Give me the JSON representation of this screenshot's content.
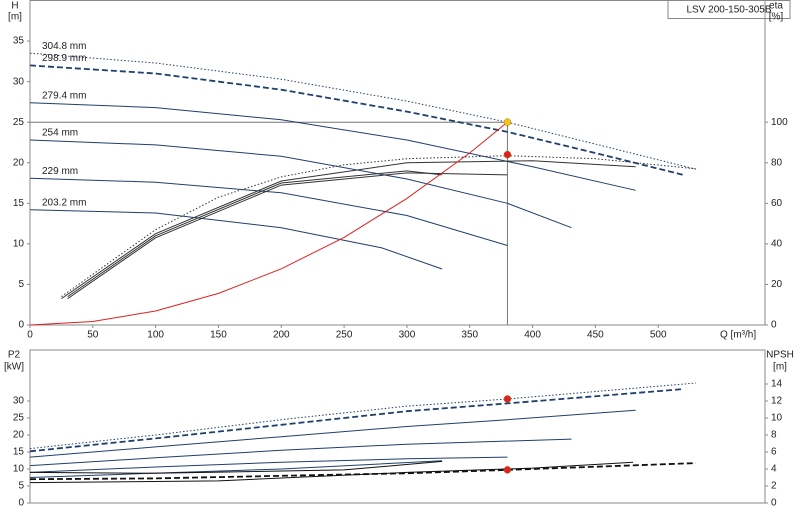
{
  "chart_data": [
    {
      "type": "line",
      "title": "LSV 200-150-305B",
      "x_label": "Q [m³/h]",
      "y_label": "H",
      "y_unit": "[m]",
      "y2_label": "eta",
      "y2_unit": "[%]",
      "xlim": [
        0,
        585
      ],
      "xticks": [
        0,
        50,
        100,
        150,
        200,
        250,
        300,
        350,
        400,
        450,
        500
      ],
      "ylim": [
        0,
        40
      ],
      "yticks": [
        0,
        5,
        10,
        15,
        20,
        25,
        30,
        35
      ],
      "y2lim": [
        0,
        160
      ],
      "y2ticks": [
        0,
        20,
        40,
        60,
        80,
        100
      ],
      "grid": false,
      "crosshair": true,
      "series": [
        {
          "name": "304.8 mm",
          "color": "#1f3f6e",
          "style": "dotted",
          "x": [
            0,
            100,
            200,
            300,
            380,
            450,
            530
          ],
          "values": [
            33.5,
            32.3,
            30.3,
            27.6,
            25,
            22.3,
            19.2
          ]
        },
        {
          "name": "298.9 mm",
          "color": "#1f3f6e",
          "style": "dashed",
          "x": [
            0,
            100,
            200,
            300,
            380,
            450,
            520
          ],
          "values": [
            32,
            31,
            29,
            26.3,
            23.8,
            21.2,
            18.5
          ]
        },
        {
          "name": "279.4 mm",
          "color": "#1f3f6e",
          "style": "solid",
          "x": [
            0,
            100,
            200,
            300,
            400,
            482
          ],
          "values": [
            27.4,
            26.8,
            25.3,
            22.8,
            19.5,
            16.6
          ]
        },
        {
          "name": "254 mm",
          "color": "#1f3f6e",
          "style": "solid",
          "x": [
            0,
            100,
            200,
            300,
            380,
            431
          ],
          "values": [
            22.8,
            22.2,
            20.8,
            18,
            15,
            12
          ]
        },
        {
          "name": "229 mm",
          "color": "#1f3f6e",
          "style": "solid",
          "x": [
            0,
            100,
            200,
            300,
            380
          ],
          "values": [
            18.1,
            17.6,
            16.3,
            13.5,
            9.8
          ]
        },
        {
          "name": "203.2 mm",
          "color": "#1f3f6e",
          "style": "solid",
          "x": [
            0,
            100,
            200,
            280,
            328
          ],
          "values": [
            14.2,
            13.8,
            12,
            9.5,
            6.9
          ]
        },
        {
          "color": "#333333",
          "style": "dotted",
          "axis": "y2",
          "x": [
            25,
            100,
            150,
            200,
            250,
            300,
            380,
            450,
            530
          ],
          "values": [
            14,
            47,
            63,
            73,
            79,
            82,
            83.5,
            82,
            77
          ]
        },
        {
          "color": "#333333",
          "style": "solid",
          "axis": "y2",
          "x": [
            25,
            100,
            200,
            300,
            400,
            482
          ],
          "values": [
            13,
            45,
            71,
            80,
            81,
            78
          ]
        },
        {
          "color": "#333333",
          "style": "solid",
          "axis": "y2",
          "x": [
            30,
            100,
            200,
            300,
            328
          ],
          "values": [
            14,
            44,
            70,
            76,
            74
          ]
        },
        {
          "color": "#333333",
          "style": "solid",
          "axis": "y2",
          "x": [
            30,
            100,
            200,
            300,
            380
          ],
          "values": [
            13,
            43,
            69,
            75,
            74
          ]
        },
        {
          "color": "#e02020",
          "style": "solid",
          "x": [
            0,
            50,
            100,
            150,
            200,
            250,
            300,
            350,
            380
          ],
          "values": [
            0,
            0.43,
            1.73,
            3.9,
            6.93,
            10.8,
            15.6,
            21.2,
            25
          ]
        }
      ],
      "markers": [
        {
          "x": 380,
          "y": 25,
          "color": "#f5c518"
        },
        {
          "x": 380,
          "y": 84,
          "color": "#e02020",
          "axis": "y2"
        }
      ]
    },
    {
      "type": "line",
      "y_label": "P2",
      "y_unit": "[kW]",
      "y2_label": "NPSH",
      "y2_unit": "[m]",
      "xlim": [
        0,
        585
      ],
      "ylim": [
        0,
        45
      ],
      "yticks": [
        0,
        5,
        10,
        15,
        20,
        25,
        30
      ],
      "y2lim": [
        0,
        18
      ],
      "y2ticks": [
        0,
        2,
        4,
        6,
        8,
        10,
        12,
        14
      ],
      "grid": false,
      "series": [
        {
          "color": "#1f3f6e",
          "style": "dotted",
          "x": [
            0,
            100,
            200,
            300,
            380,
            530
          ],
          "values": [
            16,
            20,
            24.5,
            28.5,
            30.6,
            35.3
          ]
        },
        {
          "color": "#1f3f6e",
          "style": "dashed",
          "x": [
            0,
            100,
            200,
            300,
            380,
            520
          ],
          "values": [
            15.2,
            19,
            23,
            27,
            29.3,
            33.5
          ]
        },
        {
          "color": "#1f3f6e",
          "style": "solid",
          "x": [
            0,
            100,
            200,
            300,
            380,
            482
          ],
          "values": [
            13.5,
            16.5,
            19.5,
            22.5,
            24.5,
            27.3
          ]
        },
        {
          "color": "#1f3f6e",
          "style": "solid",
          "x": [
            0,
            100,
            200,
            300,
            431
          ],
          "values": [
            11,
            13.3,
            15.5,
            17.3,
            18.8
          ]
        },
        {
          "color": "#1f3f6e",
          "style": "solid",
          "x": [
            0,
            100,
            200,
            300,
            380
          ],
          "values": [
            9,
            10.6,
            12,
            13,
            13.5
          ]
        },
        {
          "color": "#1f3f6e",
          "style": "solid",
          "x": [
            0,
            100,
            200,
            328
          ],
          "values": [
            7.5,
            8.8,
            10,
            12.4
          ]
        },
        {
          "color": "#111111",
          "style": "dashed",
          "axis": "y2",
          "x": [
            0,
            100,
            200,
            300,
            380,
            530
          ],
          "values": [
            2.8,
            2.9,
            3.2,
            3.5,
            3.9,
            4.7
          ]
        },
        {
          "color": "#111111",
          "style": "solid",
          "axis": "y2",
          "x": [
            0,
            150,
            300,
            400,
            480
          ],
          "values": [
            2.4,
            2.6,
            3.6,
            4.1,
            4.8
          ]
        },
        {
          "color": "#111111",
          "style": "solid",
          "axis": "y2",
          "x": [
            0,
            100,
            250,
            328
          ],
          "values": [
            3.6,
            3.5,
            3.9,
            4.9
          ]
        }
      ],
      "markers": [
        {
          "x": 380,
          "y": 30.6,
          "color": "#e02020"
        },
        {
          "x": 380,
          "y": 3.9,
          "color": "#e02020",
          "axis": "y2"
        }
      ]
    }
  ]
}
